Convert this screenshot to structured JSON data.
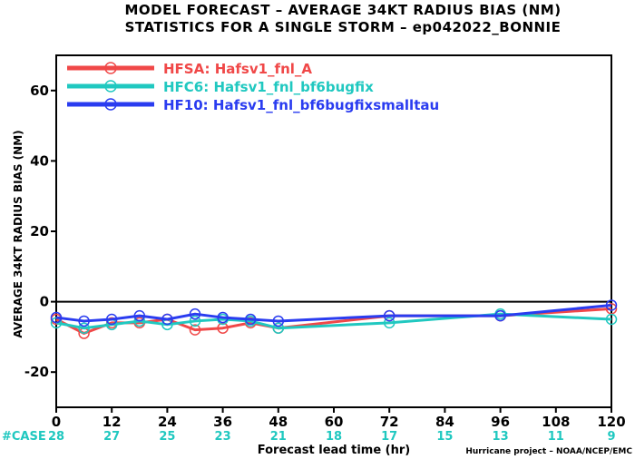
{
  "chart_data": {
    "type": "line",
    "title": "MODEL FORECAST – AVERAGE 34KT RADIUS BIAS (NM)",
    "subtitle": "STATISTICS FOR A SINGLE STORM – ep042022_BONNIE",
    "xlabel": "Forecast lead time (hr)",
    "ylabel": "AVERAGE 34KT RADIUS BIAS (NM)",
    "xlim": [
      0,
      120
    ],
    "ylim": [
      -30,
      70
    ],
    "xticks": [
      0,
      12,
      24,
      36,
      48,
      60,
      72,
      84,
      96,
      108,
      120
    ],
    "yticks": [
      -20,
      0,
      20,
      40,
      60
    ],
    "zero_line": true,
    "legend_position": "top-left",
    "case_label": "#CASE",
    "cases": [
      28,
      27,
      25,
      23,
      21,
      18,
      17,
      15,
      13,
      11,
      9
    ],
    "credit": "Hurricane project – NOAA/NCEP/EMC",
    "series": [
      {
        "name": "HFSA: Hafsv1_fnl_A",
        "color": "#f04848",
        "x": [
          0,
          6,
          12,
          18,
          24,
          30,
          36,
          42,
          48,
          72,
          96,
          120
        ],
        "y": [
          -5,
          -9,
          -6,
          -6,
          -5,
          -8,
          -7.5,
          -6,
          -7.5,
          -4,
          -4,
          -2
        ]
      },
      {
        "name": "HFC6: Hafsv1_fnl_bf6bugfix",
        "color": "#20c8c0",
        "x": [
          0,
          6,
          12,
          18,
          24,
          30,
          36,
          42,
          48,
          72,
          96,
          120
        ],
        "y": [
          -6,
          -7.5,
          -6.5,
          -5.5,
          -6.5,
          -5.5,
          -5,
          -5.5,
          -7.5,
          -6,
          -3.5,
          -5
        ]
      },
      {
        "name": "HF10: Hafsv1_fnl_bf6bugfixsmalltau",
        "color": "#2a3cf0",
        "x": [
          0,
          6,
          12,
          18,
          24,
          30,
          36,
          42,
          48,
          72,
          96,
          120
        ],
        "y": [
          -4.5,
          -5.5,
          -5,
          -4,
          -5,
          -3.5,
          -4.5,
          -5,
          -5.5,
          -4,
          -4,
          -1
        ]
      }
    ]
  }
}
